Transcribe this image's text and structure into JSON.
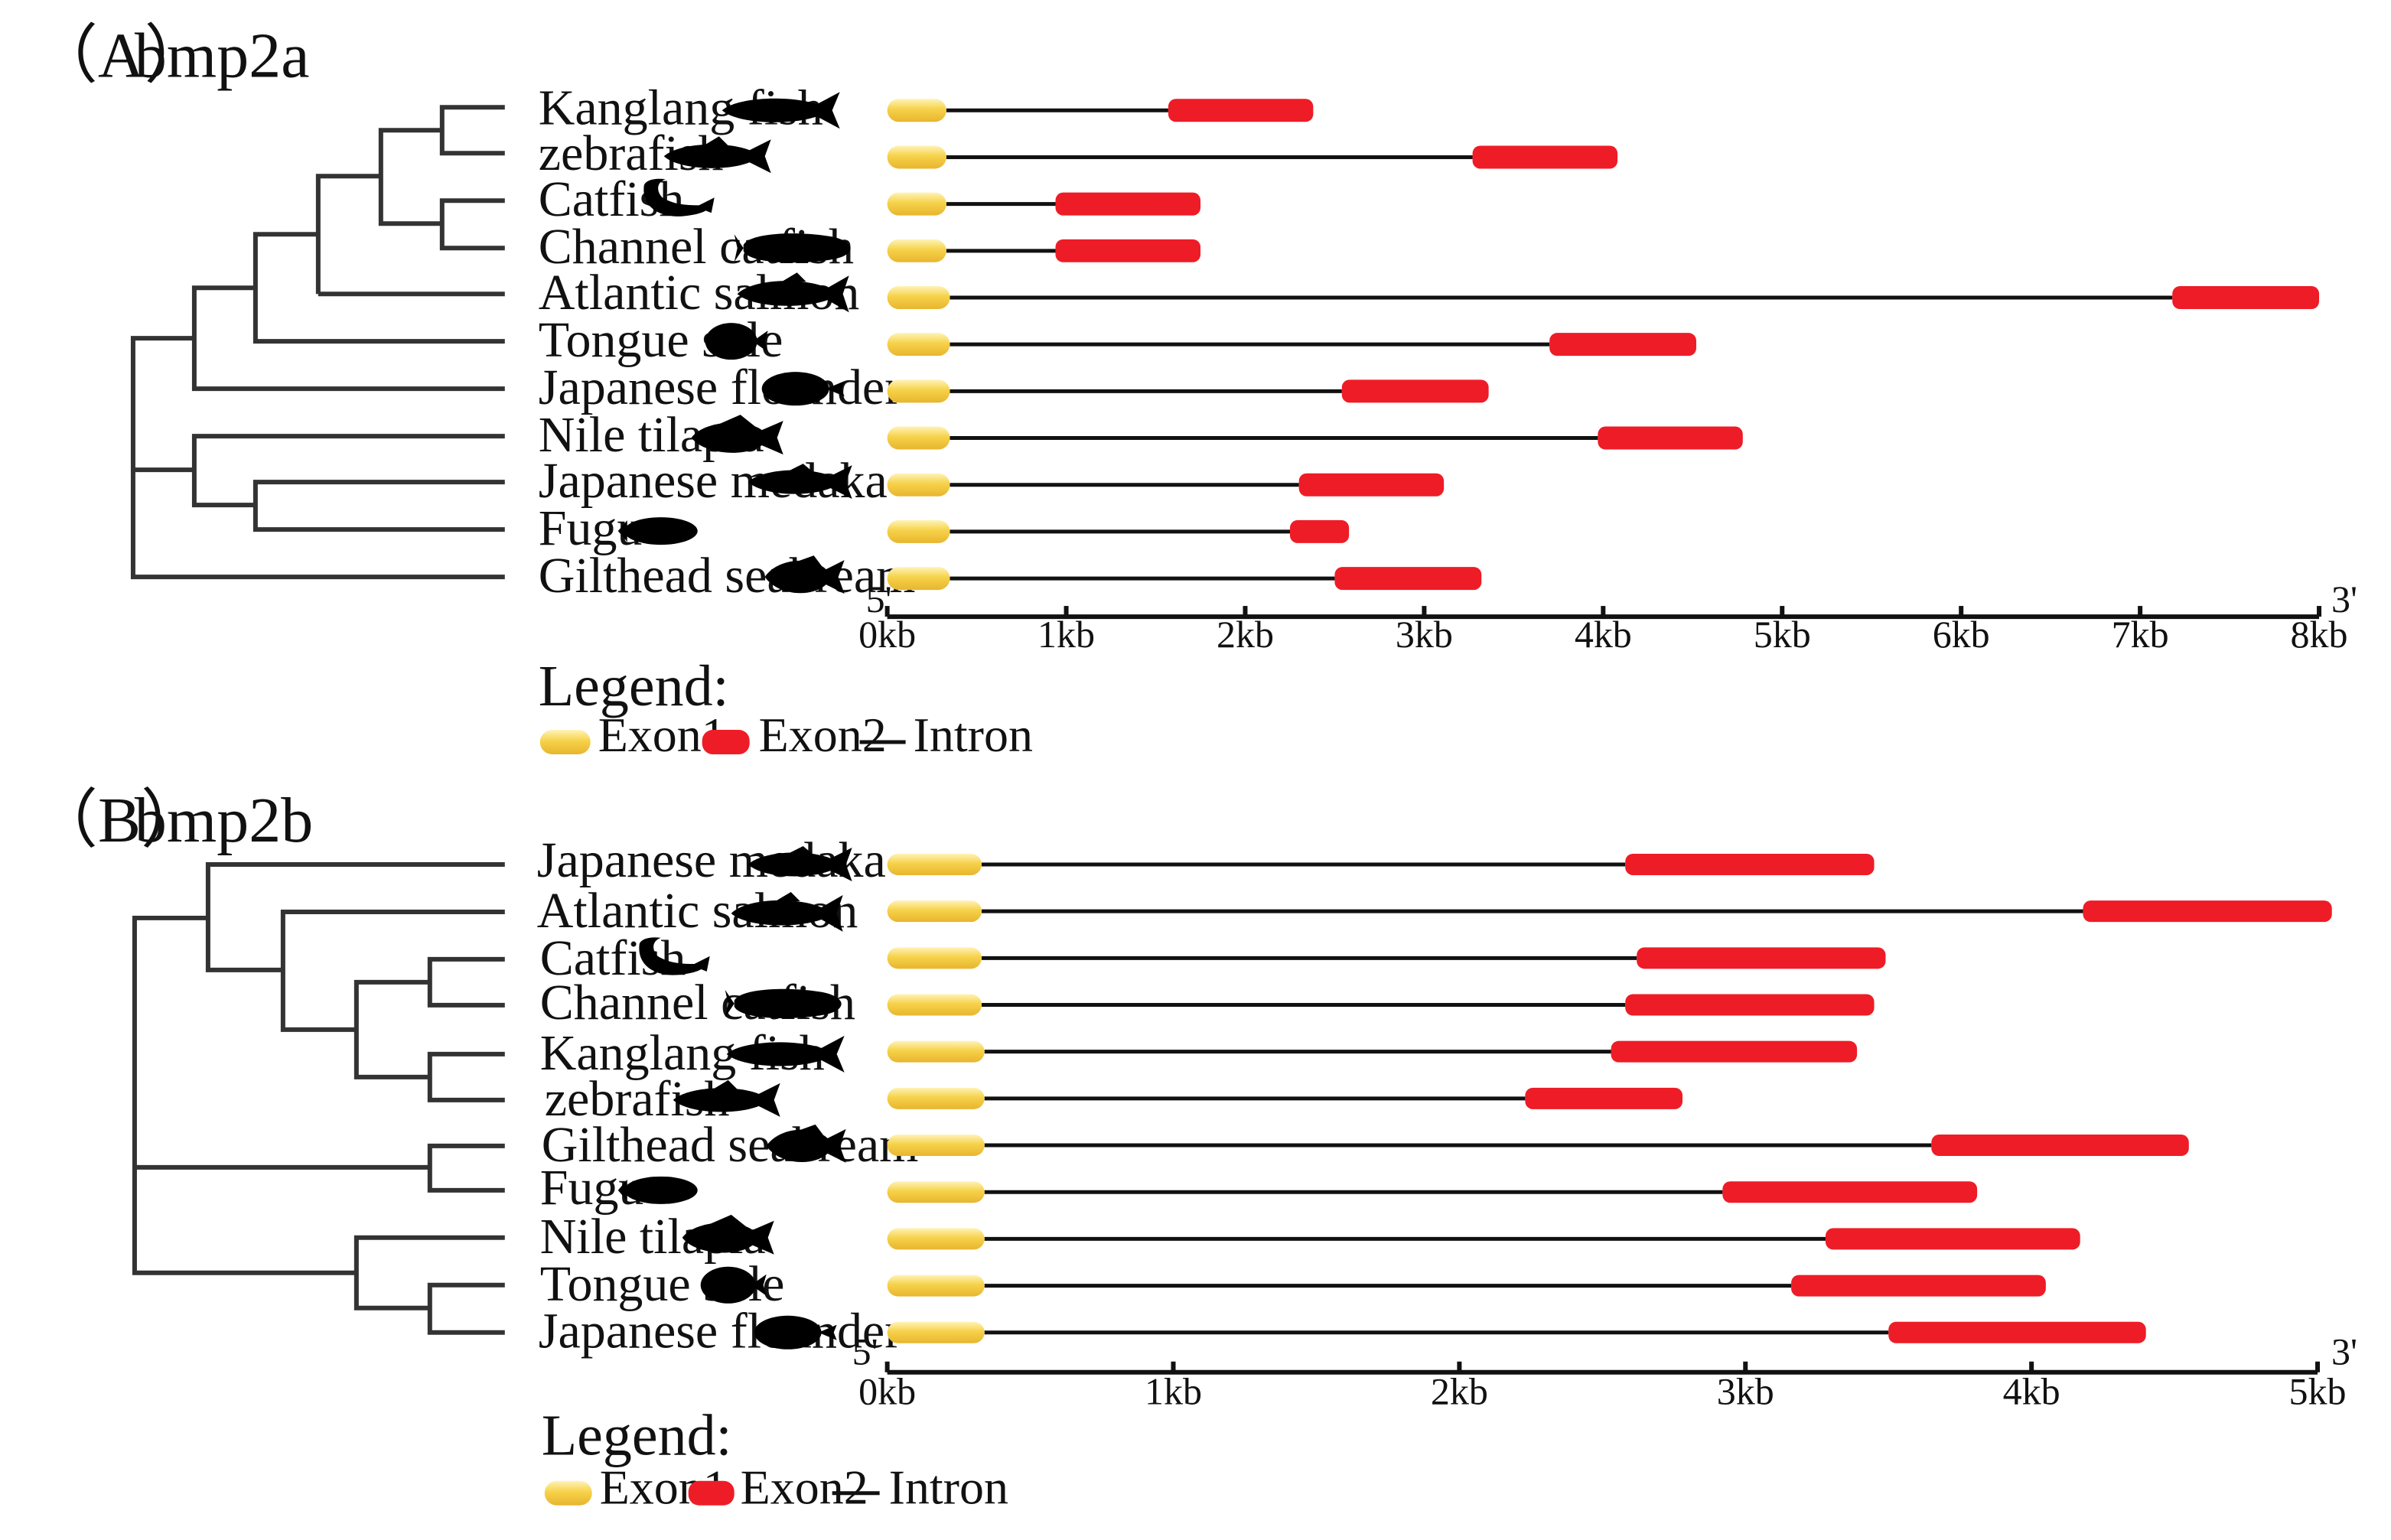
{
  "colors": {
    "exon1": "#f6d24a",
    "exon1_light": "#fff3b8",
    "exon2": "#ee1c26",
    "intron": "#111111",
    "tree": "#333333"
  },
  "legend": {
    "title": "Legend:",
    "exon1": "Exon1",
    "exon2": "Exon2",
    "intron": "Intron"
  },
  "axis_ends": {
    "five_prime": "5'",
    "three_prime": "3'"
  },
  "panels": [
    {
      "id": "A",
      "label": "（A）",
      "gene": "bmp2a",
      "axis": {
        "max_kb": 8,
        "ticks": [
          "0kb",
          "1kb",
          "2kb",
          "3kb",
          "4kb",
          "5kb",
          "6kb",
          "7kb",
          "8kb"
        ]
      },
      "species": [
        {
          "name": "Kanglang fish",
          "icon": "slender-fish-icon",
          "exon1": [
            0,
            0.33
          ],
          "exon2": [
            1.57,
            2.38
          ]
        },
        {
          "name": "zebrafish",
          "icon": "slender-fish-icon",
          "exon1": [
            0,
            0.33
          ],
          "exon2": [
            3.27,
            4.08
          ]
        },
        {
          "name": "Catfish",
          "icon": "catfish-icon",
          "exon1": [
            0,
            0.33
          ],
          "exon2": [
            0.94,
            1.75
          ]
        },
        {
          "name": "Channel catfish",
          "icon": "channel-catfish-icon",
          "exon1": [
            0,
            0.33
          ],
          "exon2": [
            0.94,
            1.75
          ]
        },
        {
          "name": "Atlantic salmon",
          "icon": "salmon-icon",
          "exon1": [
            0,
            0.35
          ],
          "exon2": [
            7.18,
            8.0
          ]
        },
        {
          "name": "Tongue sole",
          "icon": "flatfish-icon",
          "exon1": [
            0,
            0.35
          ],
          "exon2": [
            3.7,
            4.52
          ]
        },
        {
          "name": "Japanese flounder",
          "icon": "flounder-icon",
          "exon1": [
            0,
            0.35
          ],
          "exon2": [
            2.54,
            3.36
          ]
        },
        {
          "name": "Nile tilapia",
          "icon": "tilapia-icon",
          "exon1": [
            0,
            0.35
          ],
          "exon2": [
            3.97,
            4.78
          ]
        },
        {
          "name": "Japanese medaka",
          "icon": "slender-fish-icon",
          "exon1": [
            0,
            0.35
          ],
          "exon2": [
            2.3,
            3.11
          ]
        },
        {
          "name": "Fugu",
          "icon": "pufferfish-icon",
          "exon1": [
            0,
            0.35
          ],
          "exon2": [
            2.25,
            2.58
          ]
        },
        {
          "name": "Gilthead seabream",
          "icon": "seabream-icon",
          "exon1": [
            0,
            0.35
          ],
          "exon2": [
            2.5,
            3.32
          ]
        }
      ]
    },
    {
      "id": "B",
      "label": "（B）",
      "gene": "bmp2b",
      "axis": {
        "max_kb": 5,
        "ticks": [
          "0kb",
          "1kb",
          "2kb",
          "3kb",
          "4kb",
          "5kb"
        ]
      },
      "species": [
        {
          "name": "Japanese medaka",
          "icon": "slender-fish-icon",
          "exon1": [
            0,
            0.33
          ],
          "exon2": [
            2.58,
            3.45
          ]
        },
        {
          "name": "Atlantic salmon",
          "icon": "salmon-icon",
          "exon1": [
            0,
            0.33
          ],
          "exon2": [
            4.18,
            5.05
          ]
        },
        {
          "name": "Catfish",
          "icon": "catfish-icon",
          "exon1": [
            0,
            0.33
          ],
          "exon2": [
            2.62,
            3.49
          ]
        },
        {
          "name": "Channel catfish",
          "icon": "channel-catfish-icon",
          "exon1": [
            0,
            0.33
          ],
          "exon2": [
            2.58,
            3.45
          ]
        },
        {
          "name": "Kanglang fish",
          "icon": "slender-fish-icon",
          "exon1": [
            0,
            0.34
          ],
          "exon2": [
            2.53,
            3.39
          ]
        },
        {
          "name": "zebrafish",
          "icon": "slender-fish-icon",
          "exon1": [
            0,
            0.34
          ],
          "exon2": [
            2.23,
            2.78
          ]
        },
        {
          "name": "Gilthead seabream",
          "icon": "seabream-icon",
          "exon1": [
            0,
            0.34
          ],
          "exon2": [
            3.65,
            4.55
          ]
        },
        {
          "name": "Fugu",
          "icon": "pufferfish-icon",
          "exon1": [
            0,
            0.34
          ],
          "exon2": [
            2.92,
            3.81
          ]
        },
        {
          "name": "Nile tilapia",
          "icon": "tilapia-icon",
          "exon1": [
            0,
            0.34
          ],
          "exon2": [
            3.28,
            4.17
          ]
        },
        {
          "name": "Tongue sole",
          "icon": "flatfish-icon",
          "exon1": [
            0,
            0.34
          ],
          "exon2": [
            3.16,
            4.05
          ]
        },
        {
          "name": "Japanese flounder",
          "icon": "flounder-icon",
          "exon1": [
            0,
            0.34
          ],
          "exon2": [
            3.5,
            4.4
          ]
        }
      ]
    }
  ]
}
